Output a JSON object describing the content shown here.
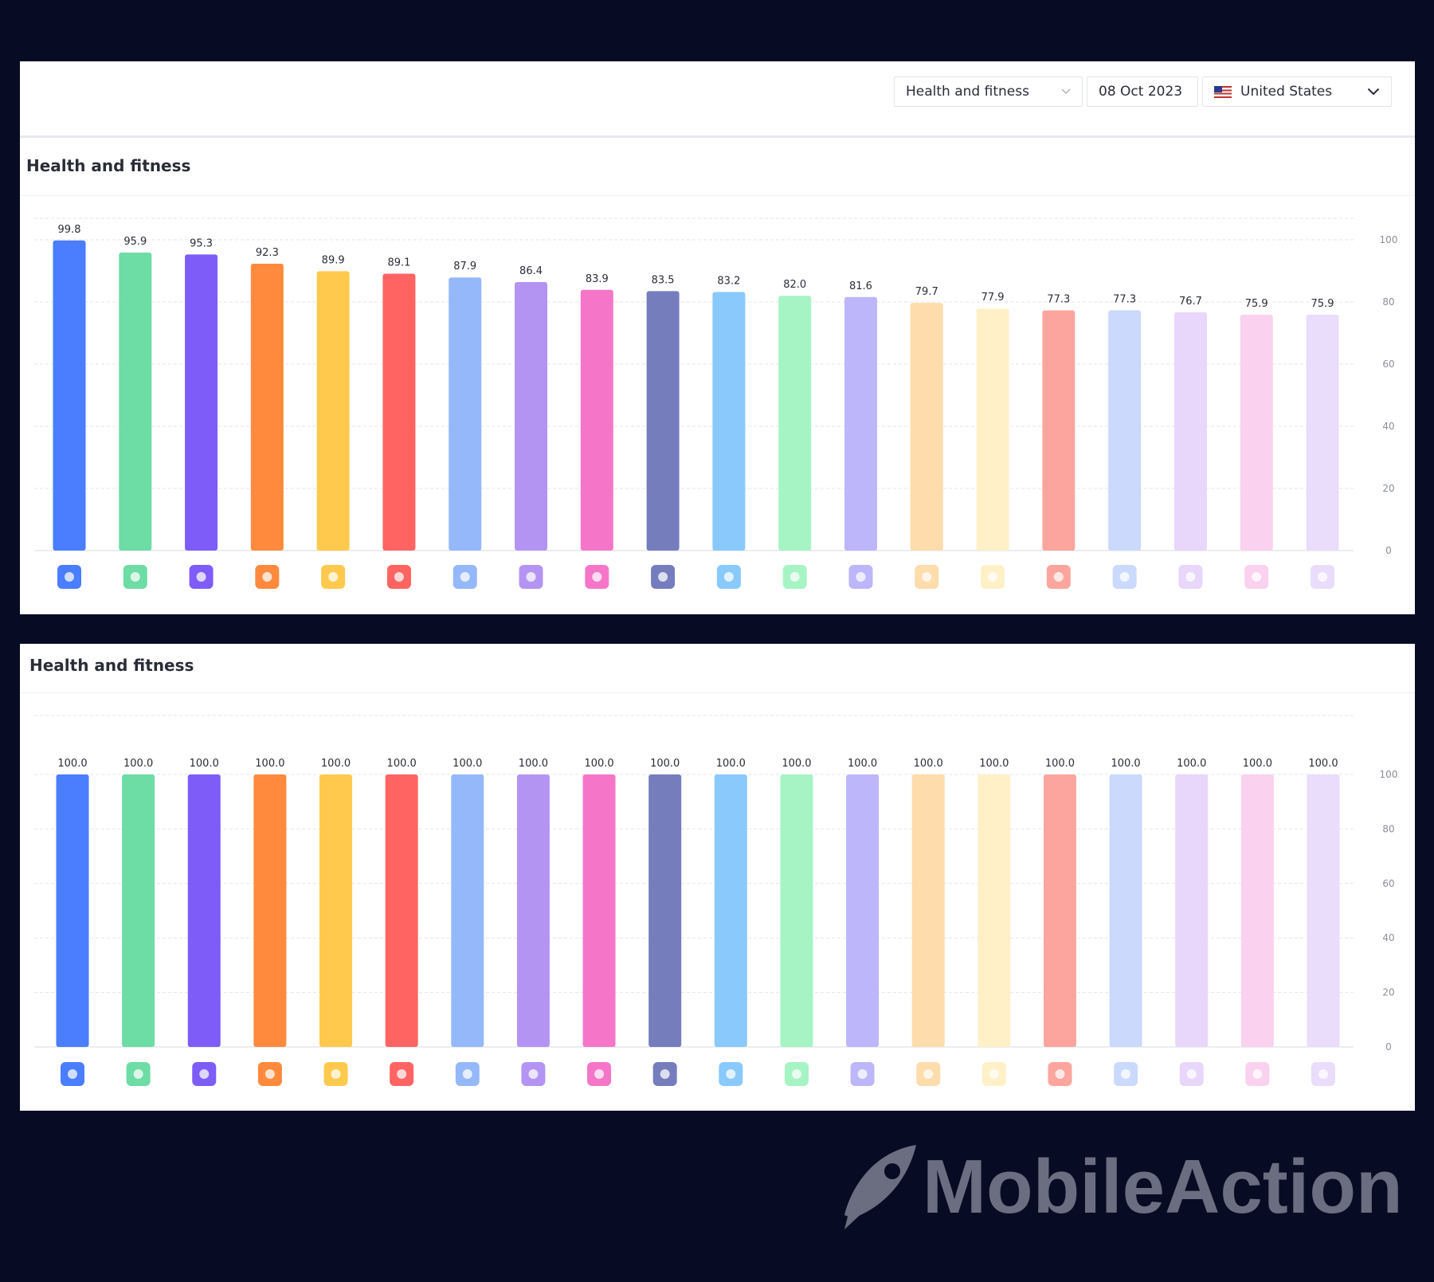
{
  "filters": {
    "category": "Health and fitness",
    "date": "08 Oct 2023",
    "country": "United States"
  },
  "brand": {
    "name": "MobileAction"
  },
  "colors": [
    "#4a7dff",
    "#6ddca5",
    "#7e5cf7",
    "#ff8a3d",
    "#ffc94d",
    "#ff6462",
    "#95b8fa",
    "#b494f3",
    "#f576c9",
    "#757dbd",
    "#89c9fc",
    "#a6f4c4",
    "#bdb6fb",
    "#fedcab",
    "#fff0c8",
    "#fca59e",
    "#cbd9fd",
    "#e8d6fb",
    "#fad1ee",
    "#eadcfb"
  ],
  "chart_data": [
    {
      "type": "bar",
      "title": "Health and fitness",
      "ylim": [
        0,
        100
      ],
      "yticks": [
        0,
        20,
        40,
        60,
        80,
        100
      ],
      "y_axis_side": "right",
      "grid": true,
      "value_format": "0.0",
      "app_icons": [
        "calm-app-icon",
        "red-hexagon-app-icon",
        "orange-circle-app-icon",
        "red-camera-app-icon",
        "green-leaf-app-icon",
        "dark-b-app-icon",
        "dark-sleep-app-icon",
        "blue-yoga-app-icon",
        "me-text-app-icon",
        "pink-legs-app-icon",
        "dark-glow-app-icon",
        "black-peloton-app-icon",
        "green-a-app-icon",
        "teal-knot-app-icon",
        "red-play-app-icon",
        "dark-dumbbell-app-icon",
        "yellow-body-app-icon",
        "red-orange-tile-app-icon",
        "orange-square-app-icon",
        "yellow-x-app-icon"
      ],
      "values": [
        99.8,
        95.9,
        95.3,
        92.3,
        89.9,
        89.1,
        87.9,
        86.4,
        83.9,
        83.5,
        83.2,
        82.0,
        81.6,
        79.7,
        77.9,
        77.3,
        77.3,
        76.7,
        75.9,
        75.9
      ]
    },
    {
      "type": "bar",
      "title": "Health and fitness",
      "ylim": [
        0,
        100
      ],
      "yticks": [
        0,
        20,
        40,
        60,
        80,
        100
      ],
      "y_axis_side": "right",
      "grid": true,
      "value_format": "0.0",
      "app_icons": [
        "dark-glow-app-icon",
        "sunset-cards-app-icon",
        "purple-x-app-icon",
        "green-a-app-icon",
        "blue-body-app-icon",
        "orange-fruit-app-icon",
        "calm-app-icon",
        "teal-swirl-app-icon",
        "teal-knot-app-icon",
        "red-hexagon-app-icon",
        "purple-hearts-app-icon",
        "orange-circle-app-icon",
        "blue-yoga-app-icon",
        "black-link-app-icon",
        "green-l-app-icon",
        "red-camera-app-icon",
        "pink-legs-app-icon",
        "black-x-app-icon",
        "pink-egg-app-icon",
        "blue-waves-app-icon"
      ],
      "values": [
        100.0,
        100.0,
        100.0,
        100.0,
        100.0,
        100.0,
        100.0,
        100.0,
        100.0,
        100.0,
        100.0,
        100.0,
        100.0,
        100.0,
        100.0,
        100.0,
        100.0,
        100.0,
        100.0,
        100.0
      ]
    }
  ]
}
